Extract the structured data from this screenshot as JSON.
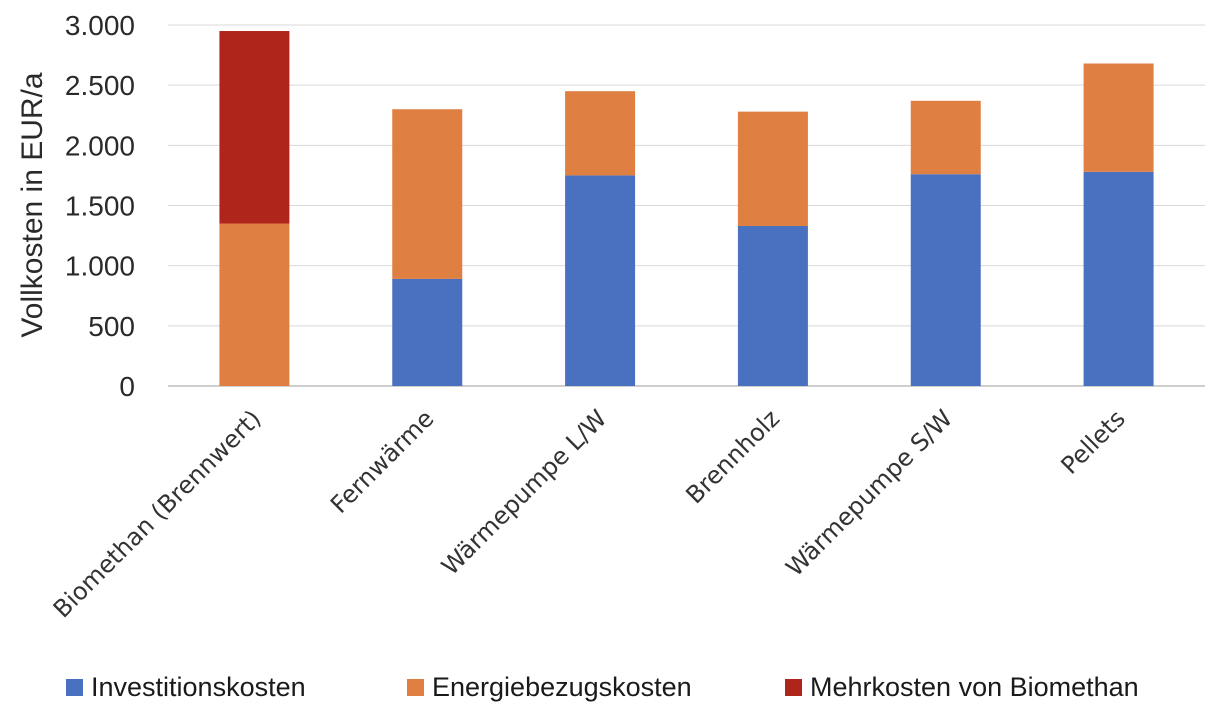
{
  "chart_data": {
    "type": "bar",
    "stacked": true,
    "title": "",
    "xlabel": "",
    "ylabel": "Vollkosten in EUR/a",
    "ylim": [
      0,
      3000
    ],
    "yticks": [
      0,
      500,
      1000,
      1500,
      2000,
      2500,
      3000
    ],
    "ytick_labels": [
      "0",
      "500",
      "1.000",
      "1.500",
      "2.000",
      "2.500",
      "3.000"
    ],
    "grid": true,
    "legend_position": "bottom",
    "categories": [
      "Biomethan (Brennwert)",
      "Fernwärme",
      "Wärmepumpe L/W",
      "Brennholz",
      "Wärmepumpe S/W",
      "Pellets"
    ],
    "series": [
      {
        "name": "Investitionskosten",
        "color": "#4a71c0",
        "values": [
          0,
          890,
          1750,
          1330,
          1760,
          1780
        ]
      },
      {
        "name": "Energiebezugskosten",
        "color": "#e07f42",
        "values": [
          1350,
          1410,
          700,
          950,
          610,
          900
        ]
      },
      {
        "name": "Mehrkosten von Biomethan",
        "color": "#b0251b",
        "values": [
          1600,
          0,
          0,
          0,
          0,
          0
        ]
      }
    ]
  }
}
